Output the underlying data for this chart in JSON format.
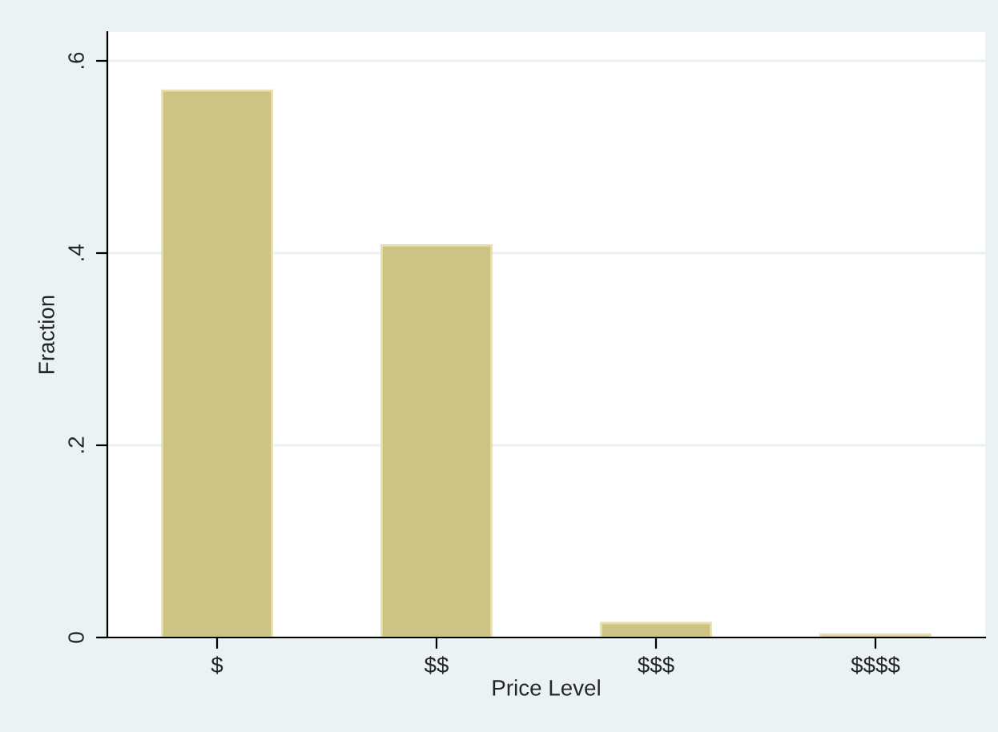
{
  "chart_data": {
    "type": "bar",
    "xlabel": "Price Level",
    "ylabel": "Fraction",
    "categories": [
      "$",
      "$$",
      "$$$",
      "$$$$"
    ],
    "values": [
      0.569,
      0.408,
      0.015,
      0.003
    ],
    "color": "#cdc382",
    "ylim": [
      0,
      0.63
    ],
    "yticks": [
      {
        "value": 0,
        "label": "0"
      },
      {
        "value": 0.2,
        "label": ".2"
      },
      {
        "value": 0.4,
        "label": ".4"
      },
      {
        "value": 0.6,
        "label": ".6"
      }
    ],
    "grid": "y",
    "legend": false
  }
}
